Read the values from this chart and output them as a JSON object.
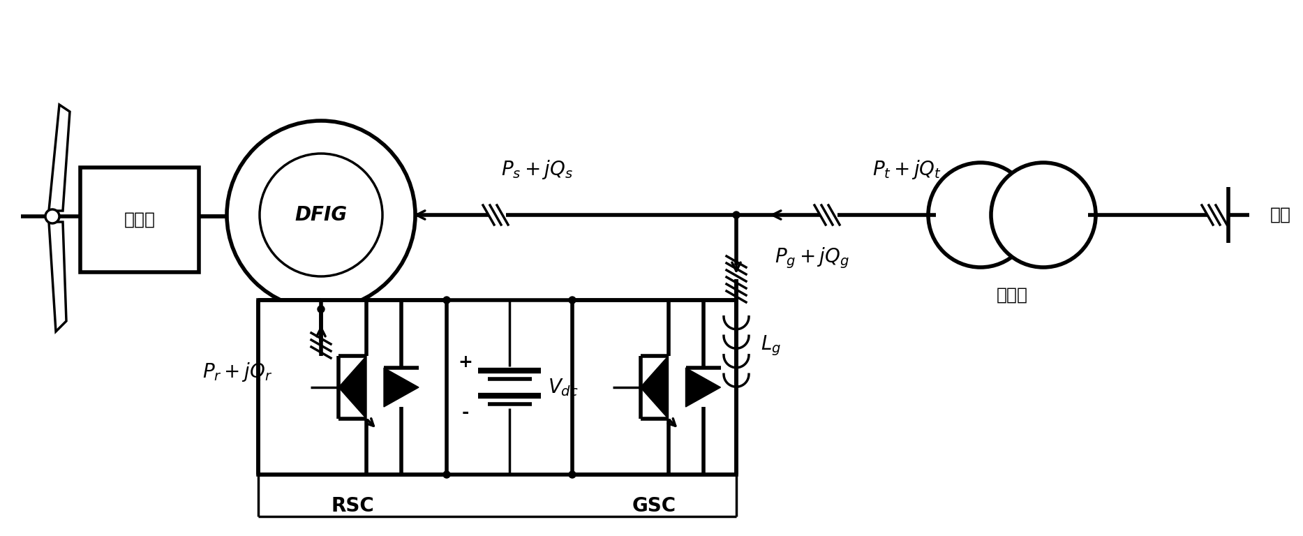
{
  "fig_width": 18.67,
  "fig_height": 7.68,
  "bg_color": "#ffffff",
  "line_color": "#000000",
  "lw": 2.5,
  "lw_thick": 4.0,
  "gearbox_label": "齿轮箱",
  "dfig_label": "DFIG",
  "grid_label": "电网",
  "transformer_label": "变压器",
  "rsc_label": "RSC",
  "gsc_label": "GSC",
  "ps_label": "$P_s + jQ_s$",
  "pt_label": "$P_t + jQ_t$",
  "pg_label": "$P_g + jQ_g$",
  "pr_label": "$P_r + jQ_r$",
  "lg_label": "$L_g$",
  "vdc_label": "$V_{dc}$",
  "font_size": 18,
  "font_size_label": 20
}
